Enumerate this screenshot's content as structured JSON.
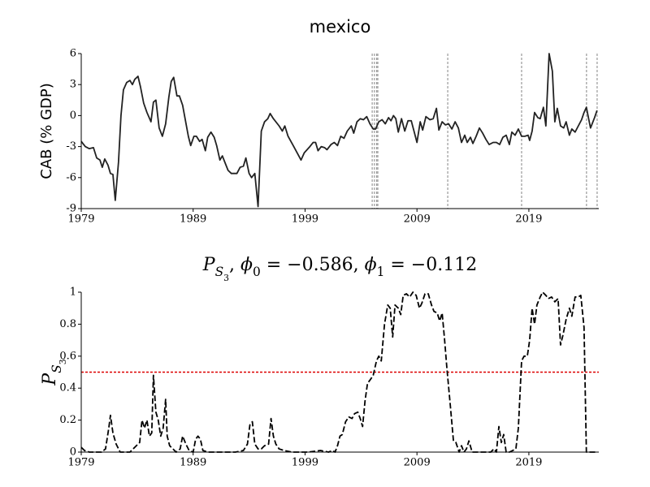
{
  "chart_data": [
    {
      "type": "line",
      "title": "mexico",
      "ylabel": "CAB (% GDP)",
      "color": "#222222",
      "linestyle": "solid",
      "x": [
        1979.0,
        1979.36,
        1979.72,
        1980.09,
        1980.38,
        1980.67,
        1980.88,
        1981.1,
        1981.39,
        1981.61,
        1981.83,
        1982.04,
        1982.33,
        1982.55,
        1982.77,
        1983.06,
        1983.35,
        1983.57,
        1983.78,
        1984.07,
        1984.29,
        1984.58,
        1984.87,
        1985.23,
        1985.45,
        1985.67,
        1985.96,
        1986.25,
        1986.54,
        1986.83,
        1987.04,
        1987.26,
        1987.55,
        1987.77,
        1988.06,
        1988.28,
        1988.57,
        1988.78,
        1989.07,
        1989.29,
        1989.58,
        1989.8,
        1990.09,
        1990.3,
        1990.59,
        1990.88,
        1991.1,
        1991.39,
        1991.61,
        1991.9,
        1992.12,
        1992.41,
        1992.7,
        1992.91,
        1993.2,
        1993.49,
        1993.71,
        1994.0,
        1994.22,
        1994.51,
        1994.8,
        1995.09,
        1995.38,
        1995.67,
        1995.88,
        1996.17,
        1996.68,
        1996.97,
        1997.19,
        1997.48,
        1997.99,
        1998.64,
        1998.93,
        1999.43,
        1999.72,
        1999.94,
        2000.16,
        2000.45,
        2000.74,
        2000.96,
        2001.32,
        2001.61,
        2001.9,
        2002.19,
        2002.48,
        2002.77,
        2003.13,
        2003.35,
        2003.64,
        2003.93,
        2004.22,
        2004.51,
        2004.8,
        2005.09,
        2005.3,
        2005.59,
        2005.88,
        2006.17,
        2006.46,
        2006.68,
        2006.9,
        2007.11,
        2007.33,
        2007.62,
        2007.91,
        2008.2,
        2008.49,
        2008.71,
        2009.0,
        2009.29,
        2009.51,
        2009.8,
        2010.16,
        2010.45,
        2010.74,
        2010.96,
        2011.25,
        2011.54,
        2011.83,
        2012.12,
        2012.41,
        2012.7,
        2012.98,
        2013.27,
        2013.49,
        2013.78,
        2014.0,
        2014.29,
        2014.58,
        2014.87,
        2015.16,
        2015.45,
        2015.81,
        2016.1,
        2016.39,
        2016.68,
        2016.97,
        2017.26,
        2017.48,
        2017.77,
        2018.06,
        2018.35,
        2018.64,
        2018.93,
        2019.07,
        2019.29,
        2019.51,
        2019.8,
        2020.01,
        2020.3,
        2020.52,
        2020.81,
        2021.1,
        2021.32,
        2021.54,
        2021.83,
        2022.11,
        2022.33,
        2022.62,
        2022.84,
        2023.13,
        2023.42,
        2023.71,
        2023.93,
        2024.14,
        2024.36,
        2024.51,
        2024.87,
        2025.09
      ],
      "values": [
        -2.5,
        -3.0,
        -3.2,
        -3.1,
        -4.1,
        -4.3,
        -5.0,
        -4.2,
        -4.8,
        -5.6,
        -5.7,
        -8.2,
        -4.5,
        0.0,
        2.5,
        3.2,
        3.4,
        3.0,
        3.5,
        3.8,
        2.8,
        1.2,
        0.3,
        -0.6,
        1.3,
        1.5,
        -1.2,
        -2.0,
        -0.8,
        1.8,
        3.3,
        3.7,
        1.9,
        1.9,
        1.0,
        -0.3,
        -2.0,
        -2.9,
        -2.0,
        -2.0,
        -2.5,
        -2.3,
        -3.4,
        -2.1,
        -1.6,
        -2.1,
        -2.9,
        -4.3,
        -3.9,
        -4.7,
        -5.3,
        -5.6,
        -5.6,
        -5.6,
        -5.0,
        -4.9,
        -4.1,
        -5.6,
        -6.0,
        -5.6,
        -8.8,
        -1.5,
        -0.6,
        -0.3,
        0.2,
        -0.3,
        -1.0,
        -1.5,
        -1.0,
        -2.0,
        -3.0,
        -4.3,
        -3.6,
        -3.0,
        -2.6,
        -2.6,
        -3.4,
        -3.0,
        -3.1,
        -3.3,
        -2.8,
        -2.6,
        -2.9,
        -2.0,
        -2.2,
        -1.5,
        -1.0,
        -1.7,
        -0.6,
        -0.3,
        -0.4,
        -0.1,
        -0.8,
        -1.3,
        -1.3,
        -0.6,
        -0.4,
        -0.8,
        -0.2,
        -0.5,
        0.0,
        -0.3,
        -1.6,
        -0.3,
        -1.5,
        -0.5,
        -0.5,
        -1.4,
        -2.6,
        -0.6,
        -1.4,
        -0.1,
        -0.4,
        -0.3,
        0.7,
        -1.4,
        -0.6,
        -0.9,
        -0.8,
        -1.3,
        -0.6,
        -1.2,
        -2.6,
        -1.9,
        -2.6,
        -2.1,
        -2.7,
        -2.0,
        -1.2,
        -1.7,
        -2.3,
        -2.8,
        -2.6,
        -2.6,
        -2.8,
        -2.1,
        -1.9,
        -2.8,
        -1.6,
        -1.9,
        -1.3,
        -2.0,
        -2.0,
        -1.9,
        -2.4,
        -1.5,
        0.3,
        -0.2,
        -0.3,
        0.8,
        -1.0,
        6.0,
        4.3,
        -0.6,
        0.7,
        -1.0,
        -1.2,
        -0.6,
        -1.9,
        -1.3,
        -1.6,
        -1.0,
        -0.4,
        0.3,
        0.8,
        -0.4,
        -1.2,
        -0.2,
        0.5
      ],
      "vlines": [
        2005.0,
        2005.2,
        2005.4,
        2005.5,
        2011.75,
        2018.35,
        2024.15,
        2025.1
      ],
      "vline_color": "#999999",
      "xlim": [
        1979,
        2025.25
      ],
      "ylim": [
        -9,
        6
      ],
      "xticks": [
        1979,
        1989,
        1999,
        2009,
        2019
      ],
      "yticks": [
        -9,
        -6,
        -3,
        0,
        3,
        6
      ]
    },
    {
      "type": "line",
      "title": "P_{S_3}, ϕ_0 = −0.586, ϕ_1 = −0.112",
      "ylabel": "P_{S_3}",
      "color": "#000000",
      "linestyle": "dashed",
      "x": [
        1979.0,
        1979.29,
        1979.72,
        1980.81,
        1981.17,
        1981.46,
        1981.61,
        1981.83,
        1982.12,
        1982.48,
        1983.35,
        1983.78,
        1984.22,
        1984.43,
        1984.65,
        1984.87,
        1985.09,
        1985.3,
        1985.45,
        1985.67,
        1985.88,
        1986.1,
        1986.32,
        1986.54,
        1986.68,
        1986.9,
        1987.19,
        1987.48,
        1987.84,
        1988.06,
        1988.35,
        1988.64,
        1989.0,
        1989.22,
        1989.43,
        1989.65,
        1989.87,
        1990.3,
        1992.77,
        1993.49,
        1993.85,
        1994.07,
        1994.29,
        1994.51,
        1994.8,
        1995.09,
        1995.38,
        1995.74,
        1995.96,
        1996.17,
        1996.39,
        1996.68,
        1997.12,
        1997.84,
        1999.29,
        2000.38,
        2001.1,
        2001.46,
        2001.68,
        2001.9,
        2002.12,
        2002.33,
        2002.62,
        2002.91,
        2003.2,
        2003.42,
        2003.71,
        2003.93,
        2004.14,
        2004.36,
        2004.58,
        2004.8,
        2005.09,
        2005.38,
        2005.59,
        2005.81,
        2006.1,
        2006.39,
        2006.61,
        2006.83,
        2007.04,
        2007.33,
        2007.55,
        2007.77,
        2008.06,
        2008.35,
        2008.64,
        2008.93,
        2009.22,
        2009.43,
        2009.72,
        2010.01,
        2010.3,
        2010.52,
        2010.81,
        2011.03,
        2011.25,
        2011.46,
        2011.68,
        2011.97,
        2012.26,
        2012.48,
        2012.77,
        2012.98,
        2013.2,
        2013.42,
        2013.64,
        2013.93,
        2014.51,
        2015.59,
        2015.88,
        2016.1,
        2016.32,
        2016.54,
        2016.75,
        2016.97,
        2017.26,
        2017.55,
        2017.84,
        2018.06,
        2018.35,
        2018.57,
        2018.86,
        2019.07,
        2019.29,
        2019.51,
        2019.72,
        2020.01,
        2020.23,
        2020.52,
        2020.74,
        2021.03,
        2021.32,
        2021.61,
        2021.83,
        2022.04,
        2022.33,
        2022.62,
        2022.84,
        2023.13,
        2023.42,
        2023.64,
        2023.93,
        2024.14,
        2024.43,
        2025.09
      ],
      "values": [
        0.03,
        0.01,
        0.0,
        0.0,
        0.02,
        0.15,
        0.23,
        0.12,
        0.05,
        0.0,
        0.0,
        0.03,
        0.06,
        0.2,
        0.15,
        0.2,
        0.1,
        0.12,
        0.48,
        0.25,
        0.2,
        0.1,
        0.15,
        0.33,
        0.1,
        0.04,
        0.02,
        0.0,
        0.02,
        0.1,
        0.05,
        0.01,
        0.0,
        0.08,
        0.1,
        0.08,
        0.01,
        0.0,
        0.0,
        0.01,
        0.05,
        0.17,
        0.19,
        0.05,
        0.02,
        0.02,
        0.04,
        0.05,
        0.21,
        0.1,
        0.05,
        0.02,
        0.01,
        0.0,
        0.0,
        0.01,
        0.0,
        0.01,
        0.0,
        0.04,
        0.1,
        0.11,
        0.19,
        0.22,
        0.21,
        0.24,
        0.25,
        0.21,
        0.16,
        0.32,
        0.43,
        0.45,
        0.48,
        0.57,
        0.6,
        0.57,
        0.8,
        0.92,
        0.9,
        0.72,
        0.92,
        0.9,
        0.86,
        0.98,
        0.99,
        0.97,
        1.0,
        0.98,
        0.9,
        0.93,
        0.99,
        0.99,
        0.92,
        0.88,
        0.87,
        0.82,
        0.87,
        0.71,
        0.52,
        0.3,
        0.07,
        0.06,
        0.0,
        0.04,
        0.0,
        0.02,
        0.07,
        0.0,
        0.0,
        0.0,
        0.02,
        0.0,
        0.16,
        0.06,
        0.11,
        0.0,
        0.0,
        0.01,
        0.02,
        0.15,
        0.57,
        0.6,
        0.6,
        0.7,
        0.9,
        0.8,
        0.92,
        0.97,
        1.0,
        0.98,
        0.96,
        0.97,
        0.94,
        0.96,
        0.67,
        0.73,
        0.83,
        0.9,
        0.85,
        0.97,
        0.97,
        0.98,
        0.78,
        0.0,
        0.0,
        0.0
      ],
      "hline": 0.5,
      "hline_color": "#dd0000",
      "xlim": [
        1979,
        2025.25
      ],
      "ylim": [
        0,
        1
      ],
      "xticks": [
        1979,
        1989,
        1999,
        2009,
        2019
      ],
      "yticks": [
        0,
        0.2,
        0.4,
        0.6,
        0.8,
        1
      ]
    }
  ]
}
